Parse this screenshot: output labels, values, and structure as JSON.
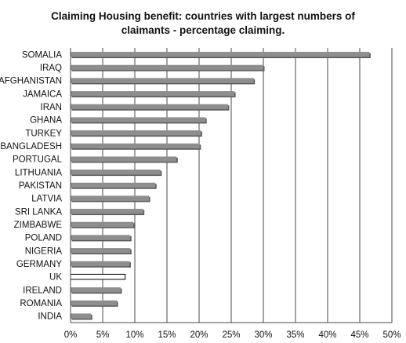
{
  "chart_data": {
    "type": "bar",
    "orientation": "horizontal",
    "title_lines": [
      "Claiming Housing benefit: countries with largest numbers of",
      "claimants - percentage claiming."
    ],
    "xlim": [
      0,
      50
    ],
    "ticks": [
      {
        "value": 0,
        "label": "0%"
      },
      {
        "value": 5,
        "label": "5%"
      },
      {
        "value": 10,
        "label": "10%"
      },
      {
        "value": 15,
        "label": "15%"
      },
      {
        "value": 20,
        "label": "20%"
      },
      {
        "value": 25,
        "label": "25%"
      },
      {
        "value": 30,
        "label": "30%"
      },
      {
        "value": 35,
        "label": "35%"
      },
      {
        "value": 40,
        "label": "40%"
      },
      {
        "value": 45,
        "label": "45%"
      },
      {
        "value": 50,
        "label": "50%"
      }
    ],
    "grid": true,
    "categories": [
      "SOMALIA",
      "IRAQ",
      "AFGHANISTAN",
      "JAMAICA",
      "IRAN",
      "GHANA",
      "TURKEY",
      "BANGLADESH",
      "PORTUGAL",
      "LITHUANIA",
      "PAKISTAN",
      "LATVIA",
      "SRI LANKA",
      "ZIMBABWE",
      "POLAND",
      "NIGERIA",
      "GERMANY",
      "UK",
      "IRELAND",
      "ROMANIA",
      "INDIA"
    ],
    "values": [
      46.5,
      30.0,
      28.5,
      25.5,
      24.5,
      21.0,
      20.3,
      20.1,
      16.5,
      14.0,
      13.2,
      12.2,
      11.3,
      9.8,
      9.3,
      9.3,
      9.2,
      8.5,
      7.8,
      7.2,
      3.2
    ],
    "highlight_category": "UK",
    "colors": {
      "bar_fill": "#8e8e8e",
      "bar_shadow": "#5a5a5a",
      "highlight_fill": "#ffffff",
      "highlight_stroke": "#000000",
      "grid": "#4a4a4a"
    }
  }
}
